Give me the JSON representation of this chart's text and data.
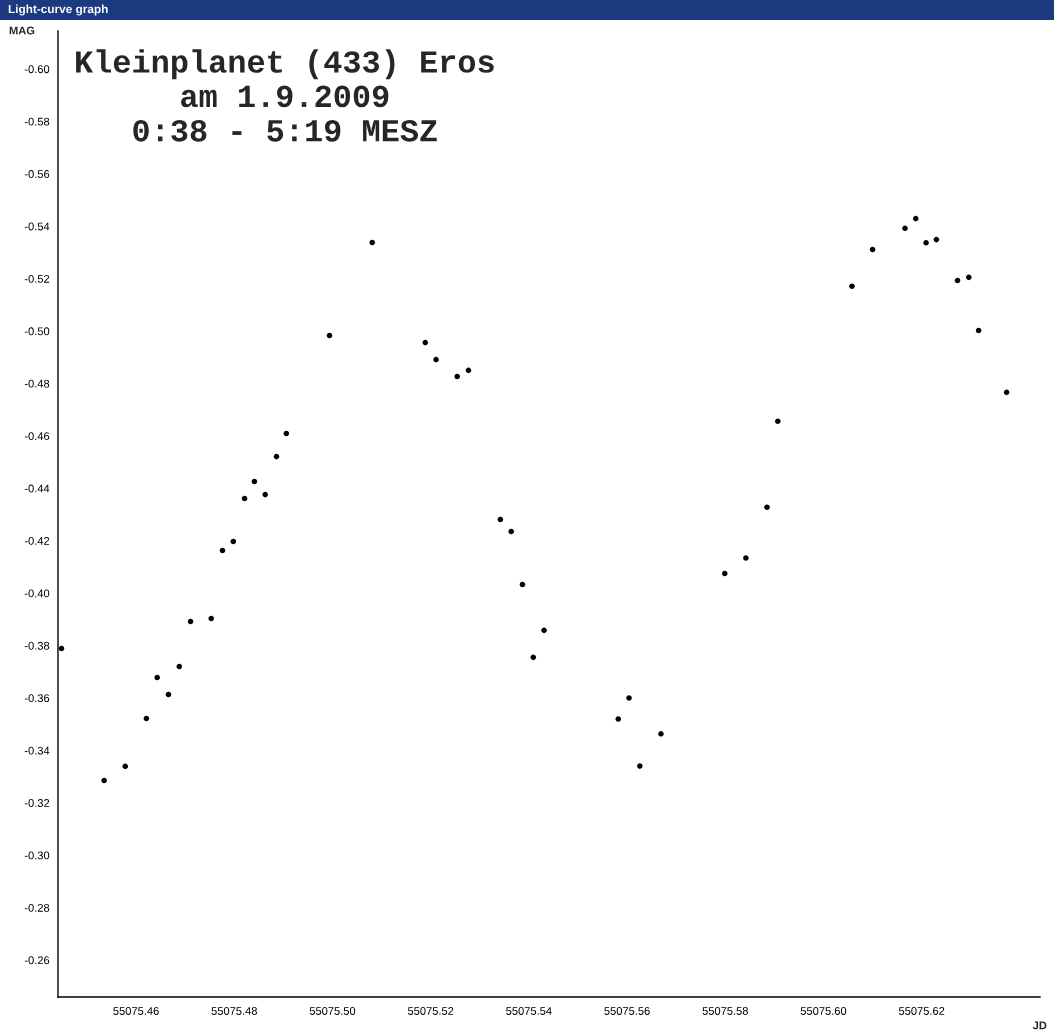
{
  "chart_data": {
    "type": "scatter",
    "title": "Kleinplanet (433) Eros\nam 1.9.2009\n0:38 - 5:19 MESZ",
    "xlabel": "JD",
    "ylabel": "MAG",
    "annotations": [
      "Light-curve graph"
    ],
    "x": [
      55075.4448,
      55075.4535,
      55075.4578,
      55075.4621,
      55075.4643,
      55075.4666,
      55075.4688,
      55075.4711,
      55075.4753,
      55075.4776,
      55075.4798,
      55075.4821,
      55075.4841,
      55075.4863,
      55075.4886,
      55075.4906,
      55075.4994,
      55075.5081,
      55075.5189,
      55075.5211,
      55075.5254,
      55075.5277,
      55075.5342,
      55075.5364,
      55075.5387,
      55075.5409,
      55075.5431,
      55075.5582,
      55075.5604,
      55075.5626,
      55075.5669,
      55075.5799,
      55075.5842,
      55075.5885,
      55075.5907,
      55075.6058,
      55075.61,
      55075.6166,
      55075.6188,
      55075.6209,
      55075.623,
      55075.6273,
      55075.6296,
      55075.6316,
      55075.6373
    ],
    "series": [
      {
        "color": "#000000",
        "values": [
          -0.3789,
          -0.3285,
          -0.3339,
          -0.3522,
          -0.3678,
          -0.3613,
          -0.372,
          -0.3892,
          -0.3903,
          -0.4163,
          -0.4197,
          -0.4361,
          -0.4426,
          -0.4376,
          -0.4521,
          -0.4609,
          -0.4983,
          -0.5338,
          -0.4956,
          -0.4891,
          -0.4827,
          -0.485,
          -0.4281,
          -0.4235,
          -0.4033,
          -0.3755,
          -0.3858,
          -0.352,
          -0.36,
          -0.334,
          -0.3463,
          -0.4075,
          -0.4134,
          -0.4328,
          -0.4656,
          -0.5171,
          -0.5311,
          -0.5392,
          -0.5429,
          -0.5337,
          -0.5349,
          -0.5193,
          -0.5205,
          -0.5002,
          -0.4766
        ]
      }
    ],
    "xlim": [
      55075.4441,
      55075.6441
    ],
    "ylim": [
      -0.2459,
      -0.6145
    ],
    "xticks": [
      55075.46,
      55075.48,
      {
        "value": 55075.5,
        "label": "55075.50"
      },
      55075.52,
      55075.54,
      55075.56,
      55075.58,
      {
        "value": 55075.6,
        "label": "55075.60"
      },
      55075.62
    ],
    "yticks": [
      {
        "value": -0.6,
        "label": "-0.60"
      },
      -0.58,
      -0.56,
      -0.54,
      -0.52,
      {
        "value": -0.5,
        "label": "-0.50"
      },
      -0.48,
      -0.46,
      -0.44,
      -0.42,
      {
        "value": -0.4,
        "label": "-0.40"
      },
      -0.38,
      -0.36,
      -0.34,
      -0.32,
      {
        "value": -0.3,
        "label": "-0.30"
      },
      -0.28,
      -0.26
    ],
    "marker": "circle"
  }
}
